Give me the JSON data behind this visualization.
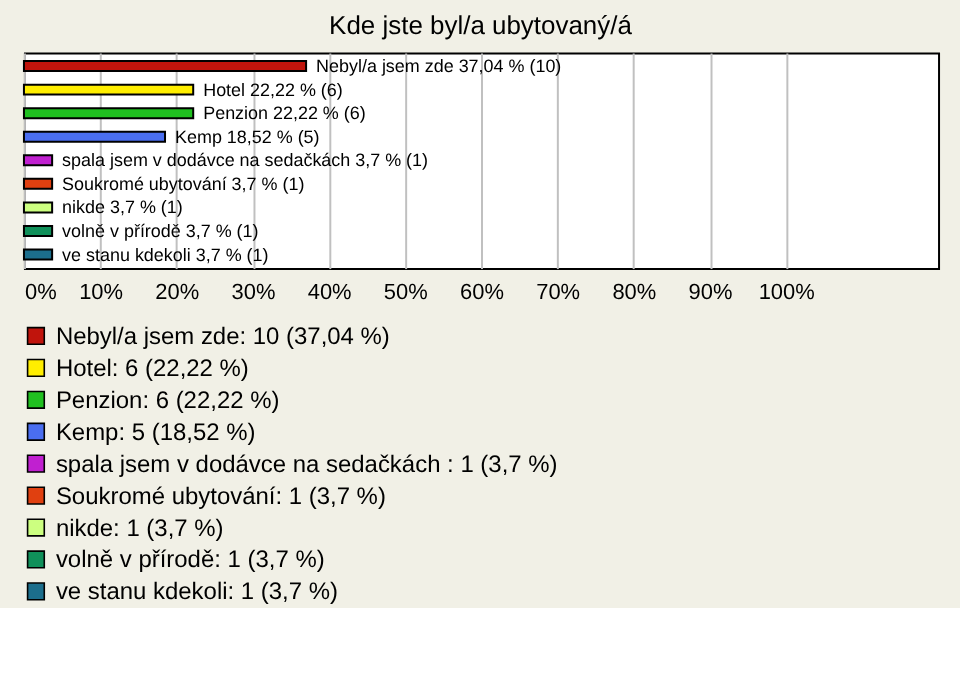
{
  "chart_data": {
    "type": "bar",
    "orientation": "horizontal",
    "title": "Kde jste byl/a ubytovaný/á",
    "categories": [
      null,
      null,
      null,
      null,
      null,
      null,
      null,
      null,
      null
    ],
    "series": [
      {
        "name": "Nebyl/a jsem zde: 10 (37,04 %)",
        "color": "#c0140c",
        "values": [
          37.04,
          null,
          null,
          null,
          null,
          null,
          null,
          null,
          null
        ],
        "value_labels": [
          "Nebyl/a jsem zde 37,04 % (10)",
          null,
          null,
          null,
          null,
          null,
          null,
          null,
          null
        ]
      },
      {
        "name": "Hotel: 6 (22,22 %)",
        "color": "#ffee00",
        "values": [
          null,
          22.22,
          null,
          null,
          null,
          null,
          null,
          null,
          null
        ],
        "value_labels": [
          null,
          "Hotel 22,22 % (6)",
          null,
          null,
          null,
          null,
          null,
          null,
          null
        ]
      },
      {
        "name": "Penzion: 6 (22,22 %)",
        "color": "#20c020",
        "values": [
          null,
          null,
          22.22,
          null,
          null,
          null,
          null,
          null,
          null
        ],
        "value_labels": [
          null,
          null,
          "Penzion 22,22 % (6)",
          null,
          null,
          null,
          null,
          null,
          null
        ]
      },
      {
        "name": "Kemp: 5 (18,52 %)",
        "color": "#4a6ef0",
        "values": [
          null,
          null,
          null,
          18.52,
          null,
          null,
          null,
          null,
          null
        ],
        "value_labels": [
          null,
          null,
          null,
          "Kemp 18,52 % (5)",
          null,
          null,
          null,
          null,
          null
        ]
      },
      {
        "name": "spala jsem v dodávce na sedačkách : 1 (3,7 %)",
        "color": "#c020d0",
        "values": [
          null,
          null,
          null,
          null,
          3.7,
          null,
          null,
          null,
          null
        ],
        "value_labels": [
          null,
          null,
          null,
          null,
          "spala jsem v dodávce na sedačkách  3,7 % (1)",
          null,
          null,
          null,
          null
        ]
      },
      {
        "name": "Soukromé ubytování: 1 (3,7 %)",
        "color": "#e04010",
        "values": [
          null,
          null,
          null,
          null,
          null,
          3.7,
          null,
          null,
          null
        ],
        "value_labels": [
          null,
          null,
          null,
          null,
          null,
          "Soukromé ubytování 3,7 % (1)",
          null,
          null,
          null
        ]
      },
      {
        "name": "nikde: 1 (3,7 %)",
        "color": "#ccff80",
        "values": [
          null,
          null,
          null,
          null,
          null,
          null,
          3.7,
          null,
          null
        ],
        "value_labels": [
          null,
          null,
          null,
          null,
          null,
          null,
          "nikde 3,7 % (1)",
          null,
          null
        ]
      },
      {
        "name": "volně v přírodě: 1 (3,7 %)",
        "color": "#10905a",
        "values": [
          null,
          null,
          null,
          null,
          null,
          null,
          null,
          3.7,
          null
        ],
        "value_labels": [
          null,
          null,
          null,
          null,
          null,
          null,
          null,
          "volně v přírodě 3,7 % (1)",
          null
        ]
      },
      {
        "name": "ve stanu kdekoli: 1 (3,7 %)",
        "color": "#1c6e8c",
        "values": [
          null,
          null,
          null,
          null,
          null,
          null,
          null,
          null,
          3.7
        ],
        "value_labels": [
          null,
          null,
          null,
          null,
          null,
          null,
          null,
          null,
          "ve stanu kdekoli 3,7 % (1)"
        ]
      }
    ],
    "legend": "bottom",
    "grid": "x",
    "xlim": [
      0,
      120
    ],
    "xticks": [
      {
        "value": 0,
        "label": "0%"
      },
      {
        "value": 10,
        "label": "10%"
      },
      {
        "value": 20,
        "label": "20%"
      },
      {
        "value": 30,
        "label": "30%"
      },
      {
        "value": 40,
        "label": "40%"
      },
      {
        "value": 50,
        "label": "50%"
      },
      {
        "value": 60,
        "label": "60%"
      },
      {
        "value": 70,
        "label": "70%"
      },
      {
        "value": 80,
        "label": "80%"
      },
      {
        "value": 90,
        "label": "90%"
      },
      {
        "value": 100,
        "label": "100%"
      }
    ]
  }
}
